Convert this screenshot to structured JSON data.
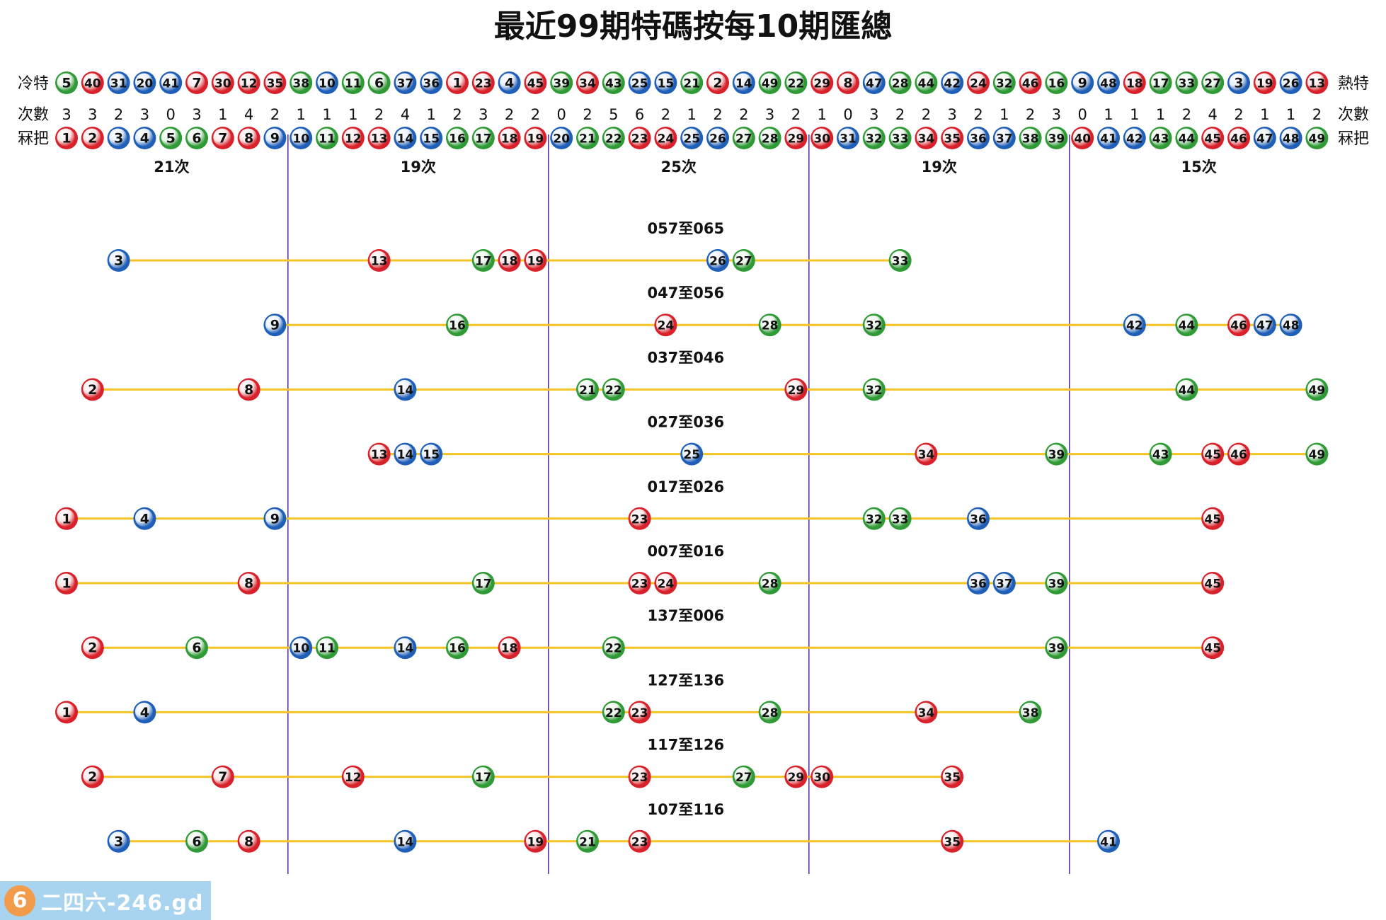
{
  "chart_data": {
    "type": "scatter",
    "title": "最近99期特碼按每10期匯總",
    "labels": {
      "cold_left": "冷特",
      "hot_right": "熱特",
      "count_left": "次數",
      "count_right": "次數",
      "sort_left": "冧把",
      "sort_right": "冧把"
    },
    "hot_cold_order": [
      5,
      40,
      31,
      20,
      41,
      7,
      30,
      12,
      35,
      38,
      10,
      11,
      6,
      37,
      36,
      1,
      23,
      4,
      45,
      39,
      34,
      43,
      25,
      15,
      21,
      2,
      14,
      49,
      22,
      29,
      8,
      47,
      28,
      44,
      42,
      24,
      32,
      46,
      16,
      9,
      48,
      18,
      17,
      33,
      27,
      3,
      19,
      26,
      13
    ],
    "counts": [
      3,
      3,
      2,
      3,
      0,
      3,
      1,
      4,
      2,
      1,
      1,
      1,
      2,
      4,
      1,
      2,
      3,
      2,
      2,
      0,
      2,
      5,
      6,
      2,
      1,
      2,
      2,
      3,
      2,
      1,
      0,
      3,
      2,
      2,
      3,
      2,
      1,
      2,
      3,
      0,
      1,
      1,
      1,
      2,
      4,
      2,
      1,
      1,
      2
    ],
    "numbers": [
      1,
      2,
      3,
      4,
      5,
      6,
      7,
      8,
      9,
      10,
      11,
      12,
      13,
      14,
      15,
      16,
      17,
      18,
      19,
      20,
      21,
      22,
      23,
      24,
      25,
      26,
      27,
      28,
      29,
      30,
      31,
      32,
      33,
      34,
      35,
      36,
      37,
      38,
      39,
      40,
      41,
      42,
      43,
      44,
      45,
      46,
      47,
      48,
      49
    ],
    "group_totals": [
      "21次",
      "19次",
      "25次",
      "19次",
      "15次"
    ],
    "periods": [
      {
        "label": "057至065",
        "numbers": [
          3,
          13,
          17,
          18,
          19,
          26,
          27,
          33
        ]
      },
      {
        "label": "047至056",
        "numbers": [
          9,
          16,
          24,
          28,
          32,
          42,
          44,
          46,
          47,
          48
        ]
      },
      {
        "label": "037至046",
        "numbers": [
          2,
          8,
          14,
          21,
          22,
          29,
          32,
          44,
          49
        ]
      },
      {
        "label": "027至036",
        "numbers": [
          13,
          14,
          15,
          25,
          34,
          39,
          43,
          45,
          46,
          49
        ]
      },
      {
        "label": "017至026",
        "numbers": [
          1,
          4,
          9,
          23,
          32,
          33,
          36,
          45
        ]
      },
      {
        "label": "007至016",
        "numbers": [
          1,
          8,
          17,
          23,
          24,
          28,
          36,
          37,
          39,
          45
        ]
      },
      {
        "label": "137至006",
        "numbers": [
          2,
          6,
          10,
          11,
          14,
          16,
          18,
          22,
          39,
          45
        ]
      },
      {
        "label": "127至136",
        "numbers": [
          1,
          4,
          22,
          23,
          28,
          34,
          38
        ]
      },
      {
        "label": "117至126",
        "numbers": [
          2,
          7,
          12,
          17,
          23,
          27,
          29,
          30,
          35
        ]
      },
      {
        "label": "107至116",
        "numbers": [
          3,
          6,
          8,
          14,
          19,
          21,
          23,
          35,
          41
        ]
      }
    ],
    "ball_colors": {
      "red": [
        1,
        2,
        7,
        8,
        12,
        13,
        18,
        19,
        23,
        24,
        29,
        30,
        34,
        35,
        40,
        45,
        46
      ],
      "blue": [
        3,
        4,
        9,
        10,
        14,
        15,
        20,
        25,
        26,
        31,
        36,
        37,
        41,
        42,
        47,
        48
      ],
      "green": [
        5,
        6,
        11,
        16,
        17,
        21,
        22,
        27,
        28,
        32,
        33,
        38,
        39,
        43,
        44,
        49
      ]
    },
    "palette": {
      "red": "#d8212a",
      "blue": "#1f5fb8",
      "green": "#2f9a36",
      "line": "#f4c324",
      "divider": "#5b3a9e"
    }
  },
  "watermark": {
    "logo": "6",
    "text": "二四六-246.gd"
  }
}
